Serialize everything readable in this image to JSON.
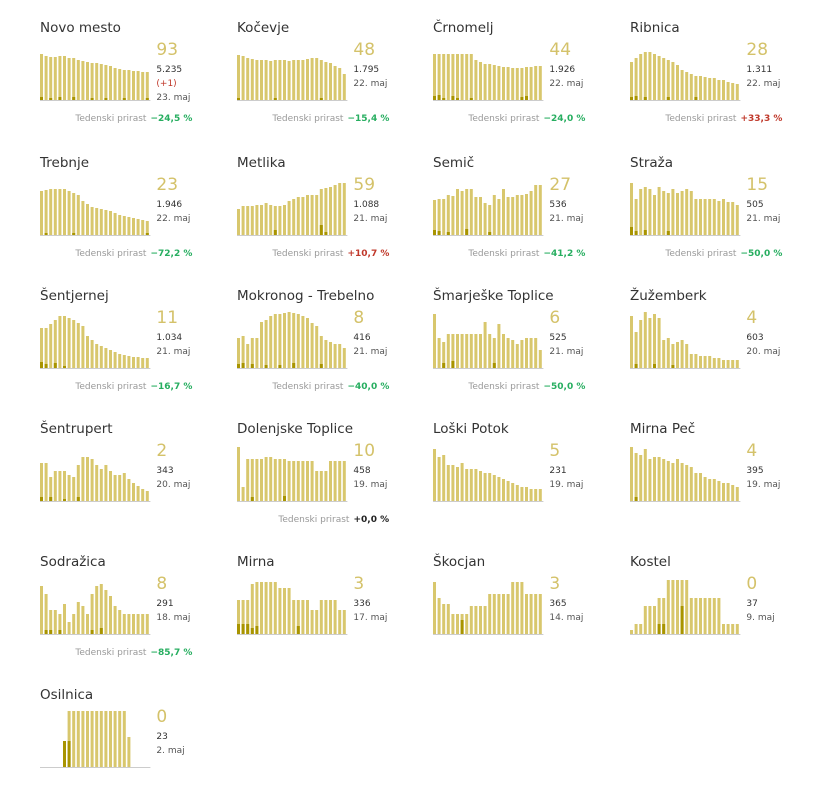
{
  "colors": {
    "bar": "#d8c76d",
    "bar_new": "#a89400",
    "big_number": "#d4c26a",
    "negative_growth": "#27ae60",
    "positive_growth": "#c0392b",
    "baseline": "#cccccc"
  },
  "growth_label": "Tedenski prirast",
  "chart_data": [
    {
      "type": "bar",
      "title": "Novo mesto",
      "active": "93",
      "total": "5.235",
      "delta": "(+1)",
      "date": "23. maj",
      "growth": "−24,5 %",
      "growth_sign": "neg",
      "values": [
        46,
        44,
        43,
        43,
        44,
        44,
        42,
        42,
        40,
        39,
        38,
        37,
        37,
        36,
        35,
        34,
        32,
        31,
        30,
        30,
        29,
        29,
        28,
        28
      ],
      "new_values": [
        3,
        0,
        2,
        0,
        3,
        0,
        0,
        3,
        0,
        0,
        0,
        2,
        0,
        0,
        2,
        0,
        0,
        0,
        2,
        0,
        0,
        0,
        0,
        2
      ]
    },
    {
      "type": "bar",
      "title": "Kočevje",
      "active": "48",
      "total": "1.795",
      "delta": "",
      "date": "22. maj",
      "growth": "−15,4 %",
      "growth_sign": "neg",
      "values": [
        45,
        44,
        42,
        41,
        40,
        40,
        40,
        39,
        40,
        40,
        40,
        39,
        40,
        40,
        40,
        41,
        42,
        42,
        40,
        38,
        37,
        34,
        32,
        26
      ],
      "new_values": [
        2,
        0,
        0,
        0,
        0,
        0,
        0,
        0,
        2,
        0,
        0,
        0,
        0,
        0,
        0,
        0,
        0,
        0,
        2,
        0,
        0,
        0,
        0,
        0
      ]
    },
    {
      "type": "bar",
      "title": "Črnomelj",
      "active": "44",
      "total": "1.926",
      "delta": "",
      "date": "22. maj",
      "growth": "−24,0 %",
      "growth_sign": "neg",
      "values": [
        46,
        46,
        46,
        46,
        46,
        46,
        46,
        46,
        46,
        40,
        38,
        36,
        36,
        35,
        34,
        33,
        33,
        32,
        32,
        32,
        33,
        33,
        34,
        34
      ],
      "new_values": [
        4,
        5,
        2,
        0,
        4,
        2,
        0,
        0,
        2,
        0,
        0,
        0,
        0,
        0,
        0,
        0,
        0,
        0,
        0,
        3,
        4,
        0,
        0,
        0
      ]
    },
    {
      "type": "bar",
      "title": "Ribnica",
      "active": "28",
      "total": "1.311",
      "delta": "",
      "date": "22. maj",
      "growth": "+33,3 %",
      "growth_sign": "pos",
      "values": [
        38,
        42,
        46,
        48,
        48,
        46,
        44,
        42,
        40,
        38,
        35,
        30,
        28,
        26,
        24,
        24,
        23,
        22,
        22,
        20,
        20,
        18,
        17,
        16
      ],
      "new_values": [
        3,
        4,
        0,
        3,
        0,
        0,
        0,
        0,
        3,
        0,
        0,
        0,
        0,
        0,
        3,
        0,
        0,
        0,
        0,
        0,
        0,
        0,
        0,
        0
      ]
    },
    {
      "type": "bar",
      "title": "Trebnje",
      "active": "23",
      "total": "1.946",
      "delta": "",
      "date": "22. maj",
      "growth": "−72,2 %",
      "growth_sign": "neg",
      "values": [
        44,
        45,
        46,
        46,
        46,
        46,
        44,
        42,
        40,
        34,
        31,
        28,
        27,
        26,
        25,
        24,
        22,
        20,
        19,
        18,
        17,
        16,
        15,
        14
      ],
      "new_values": [
        0,
        2,
        0,
        0,
        0,
        0,
        0,
        2,
        0,
        0,
        0,
        0,
        0,
        0,
        0,
        0,
        0,
        0,
        0,
        0,
        0,
        0,
        0,
        2
      ]
    },
    {
      "type": "bar",
      "title": "Metlika",
      "active": "59",
      "total": "1.088",
      "delta": "",
      "date": "21. maj",
      "growth": "+10,7 %",
      "growth_sign": "pos",
      "values": [
        26,
        29,
        29,
        29,
        30,
        30,
        32,
        30,
        29,
        29,
        30,
        34,
        36,
        38,
        38,
        40,
        40,
        40,
        46,
        47,
        48,
        50,
        52,
        52
      ],
      "new_values": [
        0,
        0,
        0,
        0,
        0,
        0,
        0,
        0,
        5,
        0,
        0,
        0,
        0,
        0,
        0,
        0,
        0,
        0,
        10,
        3,
        0,
        0,
        0,
        0
      ]
    },
    {
      "type": "bar",
      "title": "Semič",
      "active": "27",
      "total": "536",
      "delta": "",
      "date": "21. maj",
      "growth": "−41,2 %",
      "growth_sign": "neg",
      "values": [
        35,
        36,
        36,
        40,
        39,
        46,
        44,
        46,
        46,
        38,
        38,
        32,
        30,
        40,
        36,
        46,
        38,
        38,
        40,
        40,
        41,
        44,
        50,
        50
      ],
      "new_values": [
        5,
        4,
        0,
        3,
        0,
        0,
        0,
        6,
        0,
        0,
        0,
        0,
        3,
        0,
        0,
        0,
        0,
        0,
        0,
        0,
        0,
        0,
        0,
        0
      ]
    },
    {
      "type": "bar",
      "title": "Straža",
      "active": "15",
      "total": "505",
      "delta": "",
      "date": "21. maj",
      "growth": "−50,0 %",
      "growth_sign": "neg",
      "values": [
        52,
        36,
        46,
        48,
        46,
        40,
        48,
        44,
        42,
        46,
        42,
        44,
        46,
        44,
        36,
        36,
        36,
        36,
        36,
        34,
        36,
        33,
        33,
        30
      ],
      "new_values": [
        8,
        4,
        0,
        5,
        0,
        0,
        0,
        0,
        4,
        0,
        0,
        0,
        0,
        0,
        0,
        0,
        0,
        0,
        0,
        0,
        0,
        0,
        0,
        0
      ]
    },
    {
      "type": "bar",
      "title": "Šentjernej",
      "active": "11",
      "total": "1.034",
      "delta": "",
      "date": "21. maj",
      "growth": "−16,7 %",
      "growth_sign": "neg",
      "values": [
        40,
        40,
        44,
        48,
        52,
        52,
        50,
        48,
        45,
        42,
        32,
        28,
        24,
        22,
        20,
        18,
        16,
        14,
        13,
        12,
        11,
        11,
        10,
        10
      ],
      "new_values": [
        6,
        4,
        0,
        5,
        0,
        2,
        0,
        0,
        0,
        0,
        0,
        0,
        0,
        0,
        0,
        0,
        0,
        0,
        0,
        0,
        0,
        0,
        0,
        0
      ]
    },
    {
      "type": "bar",
      "title": "Mokronog - Trebelno",
      "active": "8",
      "total": "416",
      "delta": "",
      "date": "21. maj",
      "growth": "−40,0 %",
      "growth_sign": "neg",
      "values": [
        30,
        32,
        24,
        30,
        30,
        46,
        48,
        52,
        54,
        54,
        55,
        56,
        55,
        54,
        52,
        50,
        45,
        42,
        32,
        28,
        26,
        24,
        24,
        20
      ],
      "new_values": [
        4,
        5,
        0,
        4,
        0,
        0,
        3,
        0,
        0,
        3,
        0,
        0,
        5,
        0,
        0,
        0,
        0,
        0,
        4,
        0,
        0,
        0,
        0,
        0
      ]
    },
    {
      "type": "bar",
      "title": "Šmarješke Toplice",
      "active": "6",
      "total": "525",
      "delta": "",
      "date": "21. maj",
      "growth": "−50,0 %",
      "growth_sign": "neg",
      "values": [
        54,
        30,
        26,
        34,
        34,
        34,
        34,
        34,
        34,
        34,
        34,
        46,
        34,
        30,
        44,
        34,
        30,
        28,
        24,
        28,
        30,
        30,
        30,
        18
      ],
      "new_values": [
        0,
        0,
        5,
        0,
        7,
        0,
        0,
        0,
        0,
        0,
        0,
        0,
        0,
        5,
        0,
        0,
        0,
        0,
        0,
        0,
        0,
        0,
        0,
        0
      ]
    },
    {
      "type": "bar",
      "title": "Žužemberk",
      "active": "4",
      "total": "603",
      "delta": "",
      "date": "20. maj",
      "growth": "",
      "growth_sign": "",
      "values": [
        52,
        36,
        48,
        56,
        50,
        54,
        50,
        28,
        30,
        24,
        26,
        28,
        24,
        14,
        14,
        12,
        12,
        12,
        10,
        10,
        8,
        8,
        8,
        8
      ],
      "new_values": [
        0,
        4,
        0,
        0,
        0,
        4,
        0,
        0,
        0,
        3,
        0,
        0,
        0,
        0,
        0,
        0,
        0,
        0,
        0,
        0,
        0,
        0,
        0,
        0
      ]
    },
    {
      "type": "bar",
      "title": "Šentrupert",
      "active": "2",
      "total": "343",
      "delta": "",
      "date": "20. maj",
      "growth": "",
      "growth_sign": "",
      "values": [
        38,
        38,
        24,
        30,
        30,
        30,
        26,
        24,
        36,
        44,
        44,
        42,
        36,
        32,
        36,
        30,
        26,
        26,
        28,
        22,
        18,
        15,
        12,
        10
      ],
      "new_values": [
        4,
        0,
        4,
        0,
        0,
        2,
        0,
        0,
        4,
        0,
        0,
        0,
        0,
        0,
        0,
        0,
        0,
        0,
        0,
        0,
        0,
        0,
        0,
        0
      ]
    },
    {
      "type": "bar",
      "title": "Dolenjske Toplice",
      "active": "10",
      "total": "458",
      "delta": "",
      "date": "19. maj",
      "growth": "+0,0 %",
      "growth_sign": "zero",
      "values": [
        54,
        14,
        42,
        42,
        42,
        42,
        44,
        44,
        42,
        42,
        42,
        40,
        40,
        40,
        40,
        40,
        40,
        30,
        30,
        30,
        40,
        40,
        40,
        40
      ],
      "new_values": [
        0,
        0,
        0,
        4,
        0,
        0,
        0,
        0,
        0,
        0,
        5,
        0,
        0,
        0,
        0,
        0,
        0,
        0,
        0,
        0,
        0,
        0,
        0,
        0
      ]
    },
    {
      "type": "bar",
      "title": "Loški Potok",
      "active": "5",
      "total": "231",
      "delta": "",
      "date": "19. maj",
      "growth": "",
      "growth_sign": "",
      "values": [
        52,
        44,
        46,
        36,
        36,
        34,
        38,
        32,
        32,
        32,
        30,
        28,
        28,
        26,
        24,
        22,
        20,
        18,
        16,
        14,
        14,
        12,
        12,
        12
      ],
      "new_values": [
        0,
        0,
        0,
        0,
        0,
        0,
        0,
        0,
        0,
        0,
        0,
        0,
        0,
        0,
        0,
        0,
        0,
        0,
        0,
        0,
        0,
        0,
        0,
        0
      ]
    },
    {
      "type": "bar",
      "title": "Mirna Peč",
      "active": "4",
      "total": "395",
      "delta": "",
      "date": "19. maj",
      "growth": "",
      "growth_sign": "",
      "values": [
        54,
        48,
        46,
        52,
        42,
        44,
        44,
        42,
        40,
        38,
        42,
        38,
        36,
        34,
        28,
        28,
        24,
        22,
        22,
        20,
        18,
        18,
        16,
        14
      ],
      "new_values": [
        0,
        4,
        0,
        0,
        0,
        0,
        0,
        0,
        0,
        0,
        0,
        0,
        0,
        0,
        0,
        0,
        0,
        0,
        0,
        0,
        0,
        0,
        0,
        0
      ]
    },
    {
      "type": "bar",
      "title": "Sodražica",
      "active": "8",
      "total": "291",
      "delta": "",
      "date": "18. maj",
      "growth": "−85,7 %",
      "growth_sign": "neg",
      "values": [
        48,
        40,
        24,
        24,
        20,
        30,
        12,
        20,
        32,
        28,
        20,
        40,
        48,
        50,
        44,
        38,
        28,
        24,
        20,
        20,
        20,
        20,
        20,
        20
      ],
      "new_values": [
        0,
        4,
        4,
        0,
        4,
        0,
        0,
        0,
        0,
        0,
        0,
        4,
        0,
        6,
        0,
        0,
        0,
        0,
        0,
        0,
        0,
        0,
        0,
        0
      ]
    },
    {
      "type": "bar",
      "title": "Mirna",
      "active": "3",
      "total": "336",
      "delta": "",
      "date": "17. maj",
      "growth": "",
      "growth_sign": "",
      "values": [
        34,
        34,
        34,
        50,
        52,
        52,
        52,
        52,
        52,
        46,
        46,
        46,
        34,
        34,
        34,
        34,
        24,
        24,
        34,
        34,
        34,
        34,
        24,
        24
      ],
      "new_values": [
        10,
        10,
        10,
        6,
        8,
        0,
        0,
        0,
        0,
        0,
        0,
        0,
        0,
        8,
        0,
        0,
        0,
        0,
        0,
        0,
        0,
        0,
        0,
        0
      ]
    },
    {
      "type": "bar",
      "title": "Škocjan",
      "active": "3",
      "total": "365",
      "delta": "",
      "date": "14. maj",
      "growth": "",
      "growth_sign": "",
      "values": [
        52,
        36,
        30,
        30,
        20,
        20,
        20,
        20,
        28,
        28,
        28,
        28,
        40,
        40,
        40,
        40,
        40,
        52,
        52,
        52,
        40,
        40,
        40,
        40
      ],
      "new_values": [
        0,
        0,
        0,
        0,
        0,
        0,
        14,
        0,
        0,
        0,
        0,
        0,
        0,
        0,
        0,
        0,
        0,
        0,
        0,
        0,
        0,
        0,
        0,
        0
      ]
    },
    {
      "type": "bar",
      "title": "Kostel",
      "active": "0",
      "total": "37",
      "delta": "",
      "date": "9. maj",
      "growth": "",
      "growth_sign": "",
      "values": [
        4,
        10,
        10,
        28,
        28,
        28,
        36,
        36,
        54,
        54,
        54,
        54,
        54,
        36,
        36,
        36,
        36,
        36,
        36,
        36,
        10,
        10,
        10,
        10
      ],
      "new_values": [
        0,
        0,
        0,
        0,
        0,
        0,
        10,
        10,
        0,
        0,
        0,
        28,
        0,
        0,
        0,
        0,
        0,
        0,
        0,
        0,
        0,
        0,
        0,
        0
      ]
    },
    {
      "type": "bar",
      "title": "Osilnica",
      "active": "0",
      "total": "23",
      "delta": "",
      "date": "2. maj",
      "growth": "",
      "growth_sign": "",
      "values": [
        0,
        0,
        0,
        0,
        0,
        26,
        56,
        56,
        56,
        56,
        56,
        56,
        56,
        56,
        56,
        56,
        56,
        56,
        56,
        30,
        0,
        0,
        0,
        0
      ],
      "new_values": [
        0,
        0,
        0,
        0,
        0,
        26,
        26,
        0,
        0,
        0,
        0,
        0,
        0,
        0,
        0,
        0,
        0,
        0,
        0,
        0,
        0,
        0,
        0,
        0
      ]
    }
  ]
}
